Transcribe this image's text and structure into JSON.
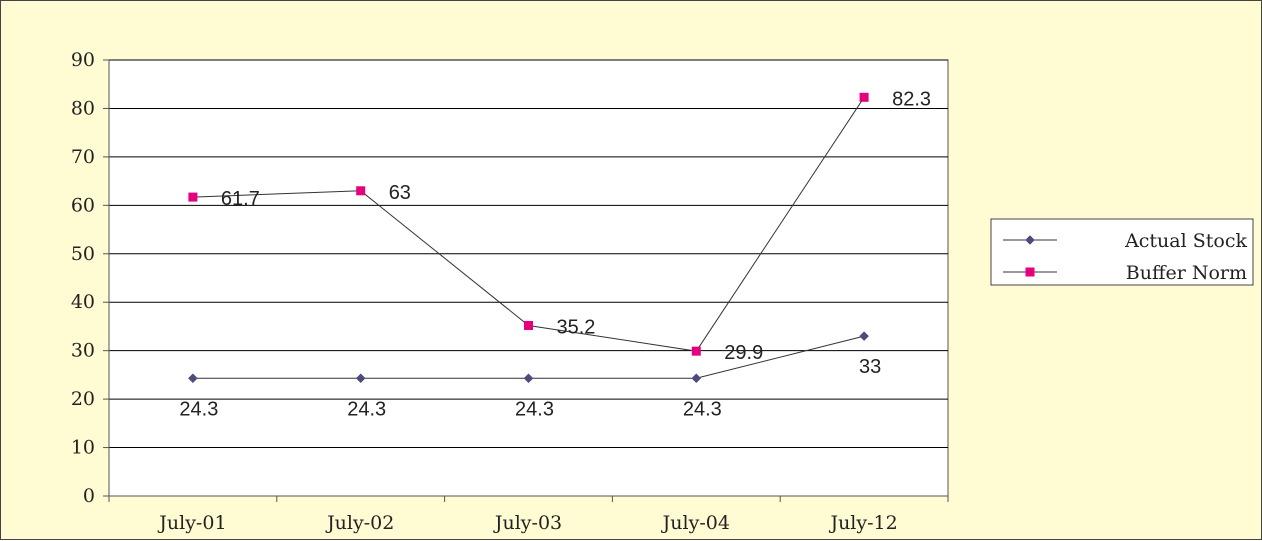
{
  "chart_data": {
    "type": "line",
    "categories": [
      "July-01",
      "July-02",
      "July-03",
      "July-04",
      "July-12"
    ],
    "ylim": [
      0,
      90
    ],
    "yticks": [
      0,
      10,
      20,
      30,
      40,
      50,
      60,
      70,
      80,
      90
    ],
    "grid": true,
    "legend_position": "right",
    "series": [
      {
        "name": "Actual Stock",
        "values": [
          24.3,
          24.3,
          24.3,
          24.3,
          33
        ],
        "color": "#4B4B7D",
        "marker": "diamond"
      },
      {
        "name": "Buffer Norm",
        "values": [
          61.7,
          63,
          35.2,
          29.9,
          82.3
        ],
        "color": "#E6007E",
        "marker": "square"
      }
    ]
  },
  "colors": {
    "plot_background": "#FFFFFF",
    "chart_background": "#FFFBD3",
    "gridline": "#000000"
  }
}
